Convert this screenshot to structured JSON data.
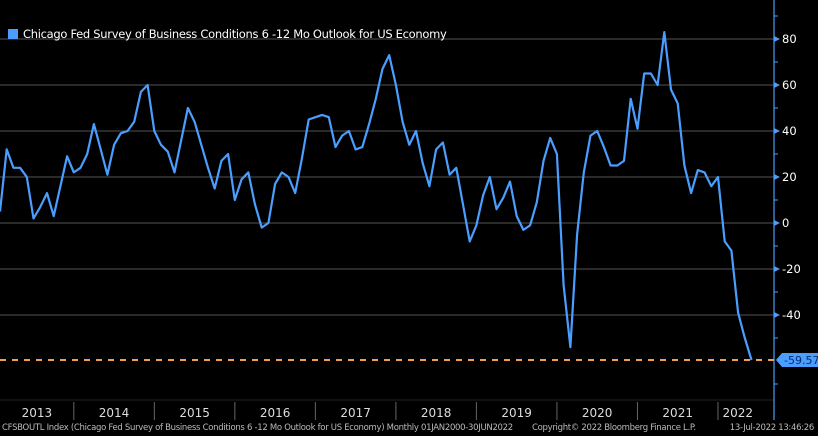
{
  "legend": {
    "label": "Chicago Fed Survey of Business Conditions 6 -12 Mo Outlook for US Economy",
    "color": "#4a9eff"
  },
  "footer": {
    "source": "CFSBOUTL Index (Chicago Fed Survey of Business Conditions 6 -12 Mo Outlook for US Economy)  Monthly 01JAN2000-30JUN2022",
    "copyright": "Copyright© 2022 Bloomberg Finance L.P.",
    "timestamp": "13-Jul-2022 13:46:26"
  },
  "chart_data": {
    "type": "line",
    "frequency": "monthly",
    "x_start": "2013-02",
    "x_end": "2022-06",
    "xtick_labels": [
      "2013",
      "2014",
      "2015",
      "2016",
      "2017",
      "2018",
      "2019",
      "2020",
      "2021",
      "2022"
    ],
    "ylim": [
      -70,
      95
    ],
    "yticks": [
      80,
      60,
      40,
      20,
      0,
      -20,
      -40
    ],
    "grid": true,
    "axis_side": "right",
    "legend_position": "top-left",
    "series": [
      {
        "name": "Chicago Fed Survey of Business Conditions 6 -12 Mo Outlook for US Economy",
        "color": "#4a9eff",
        "values": [
          5,
          32,
          24,
          24,
          20,
          2,
          7,
          13,
          3,
          16,
          29,
          22,
          24,
          30,
          43,
          32,
          21,
          34,
          39,
          40,
          44,
          57,
          60,
          40,
          34,
          31,
          22,
          36,
          50,
          44,
          34,
          24,
          15,
          27,
          30,
          10,
          19,
          22,
          8,
          -2,
          0,
          17,
          22,
          20,
          13,
          28,
          45,
          46,
          47,
          46,
          33,
          38,
          40,
          32,
          33,
          43,
          54,
          67,
          73,
          60,
          44,
          34,
          40,
          26,
          16,
          32,
          35,
          21,
          24,
          8,
          -8,
          -1,
          12,
          20,
          6,
          11,
          18,
          3,
          -3,
          -1,
          9,
          27,
          37,
          30,
          -27,
          -54,
          -5,
          22,
          38,
          40,
          33,
          25,
          25,
          27,
          54,
          41,
          65,
          65,
          60,
          83,
          58,
          52,
          25,
          13,
          23,
          22,
          16,
          20,
          -8,
          -12,
          -39,
          -50,
          -59.57
        ]
      }
    ],
    "last_value": {
      "value": -59.57,
      "label": "-59.57",
      "line_color": "#f0a050",
      "badge_color": "#4a9eff"
    }
  }
}
